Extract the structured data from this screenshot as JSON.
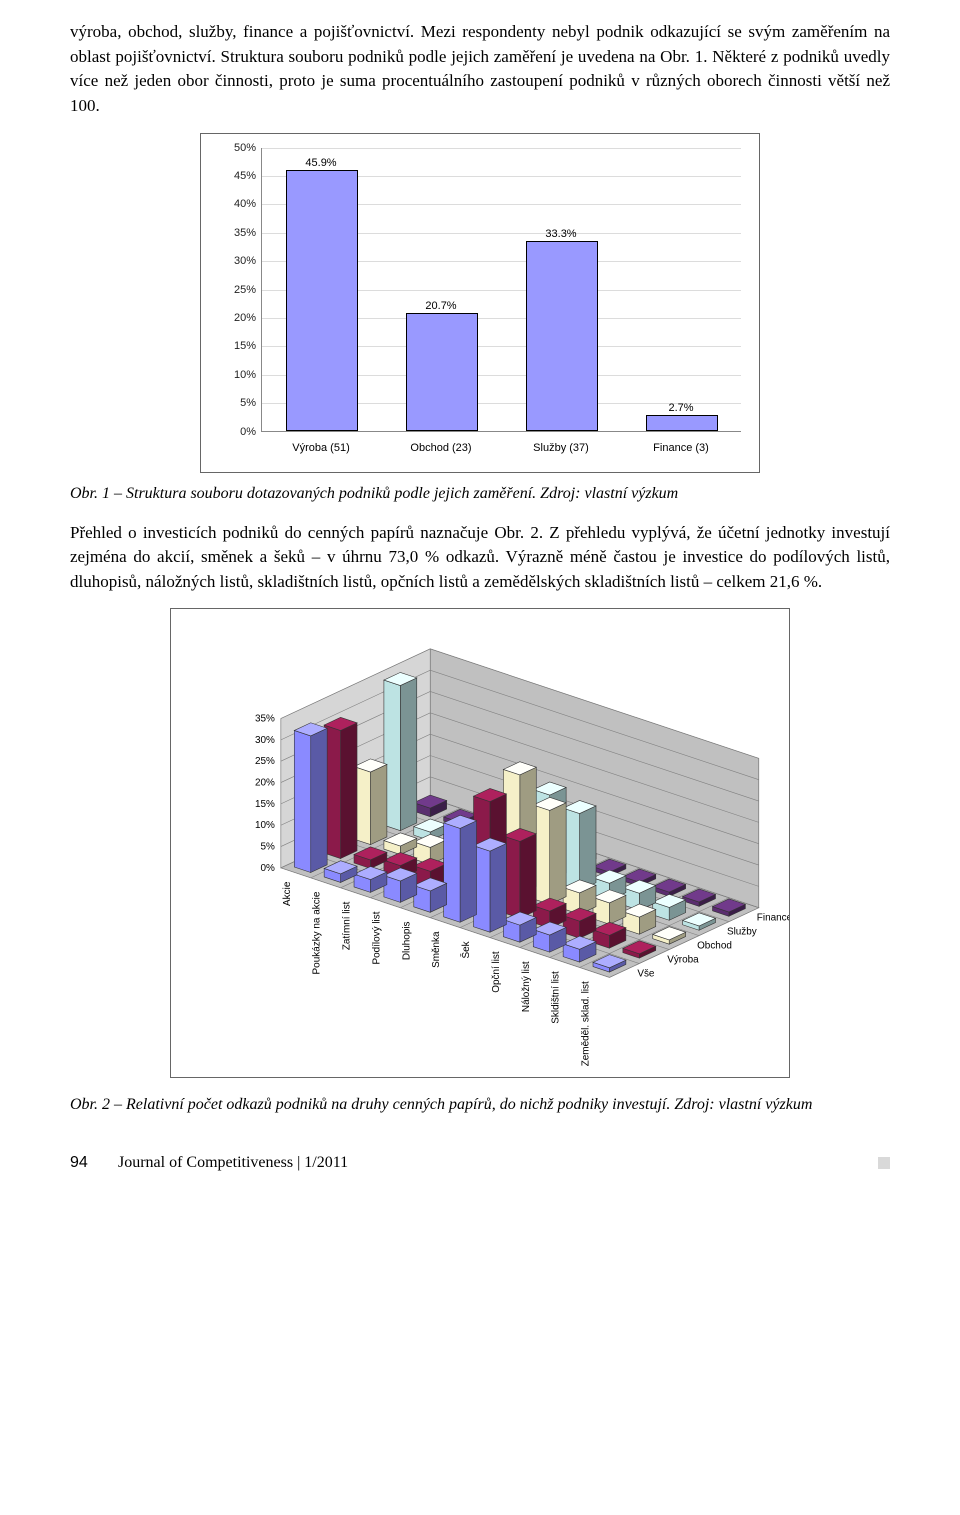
{
  "paragraphs": {
    "p1": "výroba, obchod, služby, finance a pojišťovnictví. Mezi respondenty nebyl podnik odkazující se svým zaměřením na oblast pojišťovnictví. Struktura souboru podniků podle jejich zaměření je uvedena na Obr. 1. Některé z podniků uvedly více než jeden obor činnosti, proto je suma procentuálního zastoupení podniků v různých oborech činnosti větší než 100.",
    "p2": "Přehled o investicích podniků do cenných papírů naznačuje Obr. 2. Z přehledu vyplývá, že účetní jednotky investují zejména do akcií, směnek a šeků – v úhrnu 73,0 % odkazů. Výrazně méně častou je investice do podílových listů, dluhopisů, náložných listů, skladištních listů, opčních listů a zemědělských skladištních listů – celkem 21,6 %."
  },
  "captions": {
    "c1": "Obr. 1 – Struktura souboru dotazovaných podniků podle jejich zaměření. Zdroj: vlastní výzkum",
    "c2": "Obr. 2 – Relativní počet odkazů podniků na druhy cenných papírů, do nichž podniky investují. Zdroj: vlastní výzkum"
  },
  "chart1": {
    "type": "bar",
    "categories": [
      "Výroba (51)",
      "Obchod (23)",
      "Služby (37)",
      "Finance (3)"
    ],
    "values": [
      45.9,
      20.7,
      33.3,
      2.7
    ],
    "value_labels": [
      "45.9%",
      "20.7%",
      "33.3%",
      "2.7%"
    ],
    "bar_color": "#9999ff",
    "bar_border": "#000000",
    "ylim": [
      0,
      50
    ],
    "ytick_step": 5,
    "ytick_labels": [
      "0%",
      "5%",
      "10%",
      "15%",
      "20%",
      "25%",
      "30%",
      "35%",
      "40%",
      "45%",
      "50%"
    ],
    "grid_color": "#dcdcdc",
    "label_fontsize": 11
  },
  "chart3d": {
    "type": "3d-bar",
    "z_ticks": [
      "0%",
      "5%",
      "10%",
      "15%",
      "20%",
      "25%",
      "30%",
      "35%"
    ],
    "x_categories": [
      "Akcie",
      "Poukázky na akcie",
      "Zatímní list",
      "Podílový list",
      "Dluhopis",
      "Směnka",
      "Šek",
      "Opční list",
      "Náložný list",
      "Skldištní list",
      "Zeměděl. sklad. list"
    ],
    "series": [
      "Vše",
      "Výroba",
      "Obchod",
      "Služby",
      "Finance"
    ],
    "series_colors": {
      "Vše": "#8a8aff",
      "Výroba": "#8b1a4a",
      "Obchod": "#f5f0c8",
      "Služby": "#bde3e3",
      "Finance": "#5a2e6f"
    },
    "floor_color": "#c0c0c0",
    "backwall_color": "#c0c0c0",
    "sidewall_color": "#d6d6d6",
    "grid_color": "#808080",
    "data": {
      "Vše": [
        32,
        2,
        3,
        5,
        5,
        22,
        19,
        4,
        4,
        3,
        1
      ],
      "Výroba": [
        30,
        2,
        3,
        4,
        5,
        25,
        18,
        4,
        4,
        3,
        1
      ],
      "Obchod": [
        17,
        2,
        4,
        6,
        6,
        28,
        22,
        5,
        5,
        4,
        1
      ],
      "Služby": [
        34,
        2,
        3,
        5,
        5,
        20,
        18,
        4,
        4,
        3,
        1
      ],
      "Finance": [
        2,
        1,
        1,
        1,
        4,
        1,
        1,
        1,
        1,
        1,
        1
      ]
    }
  },
  "footer": {
    "page": "94",
    "journal": "Journal of Competitiveness  |  1/2011"
  }
}
